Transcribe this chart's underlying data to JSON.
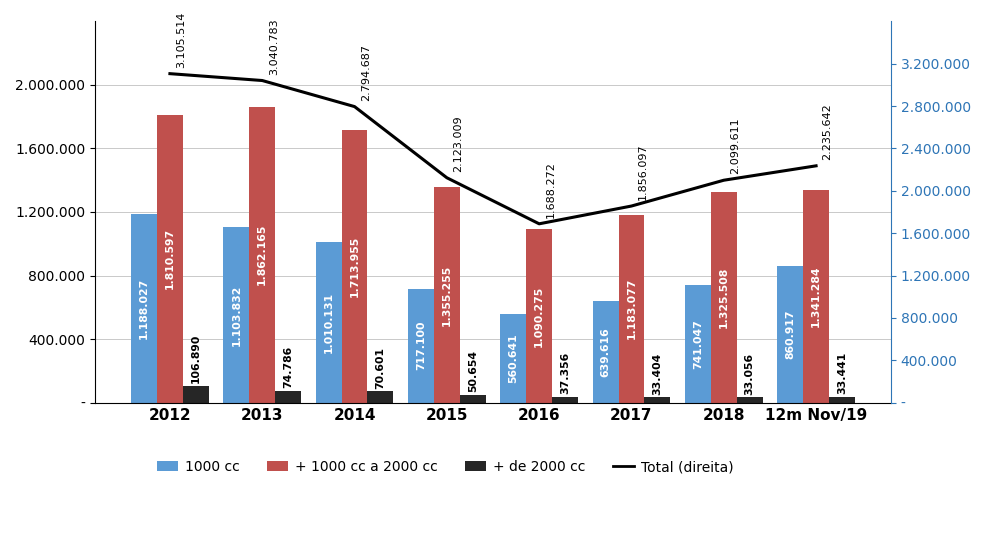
{
  "years": [
    "2012",
    "2013",
    "2014",
    "2015",
    "2016",
    "2017",
    "2018",
    "12m Nov/19"
  ],
  "cc1000": [
    1188027,
    1103832,
    1010131,
    717100,
    560641,
    639616,
    741047,
    860917
  ],
  "cc1000_2000": [
    1810597,
    1862165,
    1713955,
    1355255,
    1090275,
    1183077,
    1325508,
    1341284
  ],
  "cc2000plus": [
    106890,
    74786,
    70601,
    50654,
    37356,
    33404,
    33056,
    33441
  ],
  "total": [
    3105514,
    3040783,
    2794687,
    2123009,
    1688272,
    1856097,
    2099611,
    2235642
  ],
  "bar_color_1000": "#5b9bd5",
  "bar_color_1000_2000": "#c0504d",
  "bar_color_2000plus": "#262626",
  "line_color": "#000000",
  "ylim_left": [
    0,
    2400000
  ],
  "ylim_right": [
    0,
    3600000
  ],
  "yticks_left": [
    0,
    400000,
    800000,
    1200000,
    1600000,
    2000000
  ],
  "yticks_right": [
    0,
    400000,
    800000,
    1200000,
    1600000,
    2000000,
    2400000,
    2800000,
    3200000
  ],
  "legend_labels": [
    "1000 cc",
    "+ 1000 cc a 2000 cc",
    "+ de 2000 cc",
    "Total (direita)"
  ],
  "bar_width": 0.28,
  "fig_width": 9.86,
  "fig_height": 5.33,
  "dpi": 100
}
